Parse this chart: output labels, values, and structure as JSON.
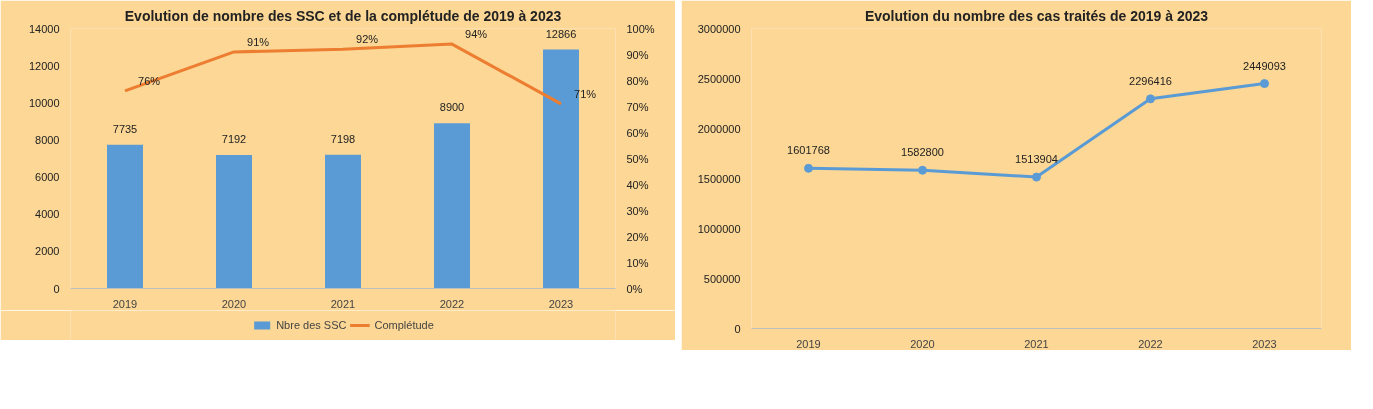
{
  "chart_data": [
    {
      "type": "bar",
      "title": "Evolution de nombre des SSC et de la complétude de 2019 à 2023",
      "categories": [
        "2019",
        "2020",
        "2021",
        "2022",
        "2023"
      ],
      "series": [
        {
          "name": "Nbre des SSC",
          "type": "bar",
          "color": "#5b9bd5",
          "values": [
            7735,
            7192,
            7198,
            8900,
            12866
          ],
          "data_labels": true
        },
        {
          "name": "Complétude",
          "type": "line",
          "axis": "y2",
          "color": "#ed7d31",
          "values": [
            76,
            91,
            92,
            94,
            71
          ],
          "value_labels": [
            "76%",
            "91%",
            "92%",
            "94%",
            "71%"
          ]
        }
      ],
      "ylim": [
        0,
        14000
      ],
      "yticks": [
        0,
        2000,
        4000,
        6000,
        8000,
        10000,
        12000,
        14000
      ],
      "y2lim": [
        0,
        100
      ],
      "y2ticks": [
        {
          "value": 0,
          "label": "0%"
        },
        {
          "value": 10,
          "label": "10%"
        },
        {
          "value": 20,
          "label": "20%"
        },
        {
          "value": 30,
          "label": "30%"
        },
        {
          "value": 40,
          "label": "40%"
        },
        {
          "value": 50,
          "label": "50%"
        },
        {
          "value": 60,
          "label": "60%"
        },
        {
          "value": 70,
          "label": "70%"
        },
        {
          "value": 80,
          "label": "80%"
        },
        {
          "value": 90,
          "label": "90%"
        },
        {
          "value": 100,
          "label": "100%"
        }
      ],
      "legend": "bottom",
      "grid": false
    },
    {
      "type": "line",
      "title": "Evolution du nombre des cas traités de 2019 à 2023",
      "categories": [
        "2019",
        "2020",
        "2021",
        "2022",
        "2023"
      ],
      "series": [
        {
          "color": "#5b9bd5",
          "values": [
            1601768,
            1582800,
            1513904,
            2296416,
            2449093
          ]
        }
      ],
      "data_labels": true,
      "marker": "circle",
      "ylim": [
        0,
        3000000
      ],
      "yticks": [
        0,
        500000,
        1000000,
        1500000,
        2000000,
        2500000,
        3000000
      ],
      "legend": false,
      "grid": false
    }
  ]
}
